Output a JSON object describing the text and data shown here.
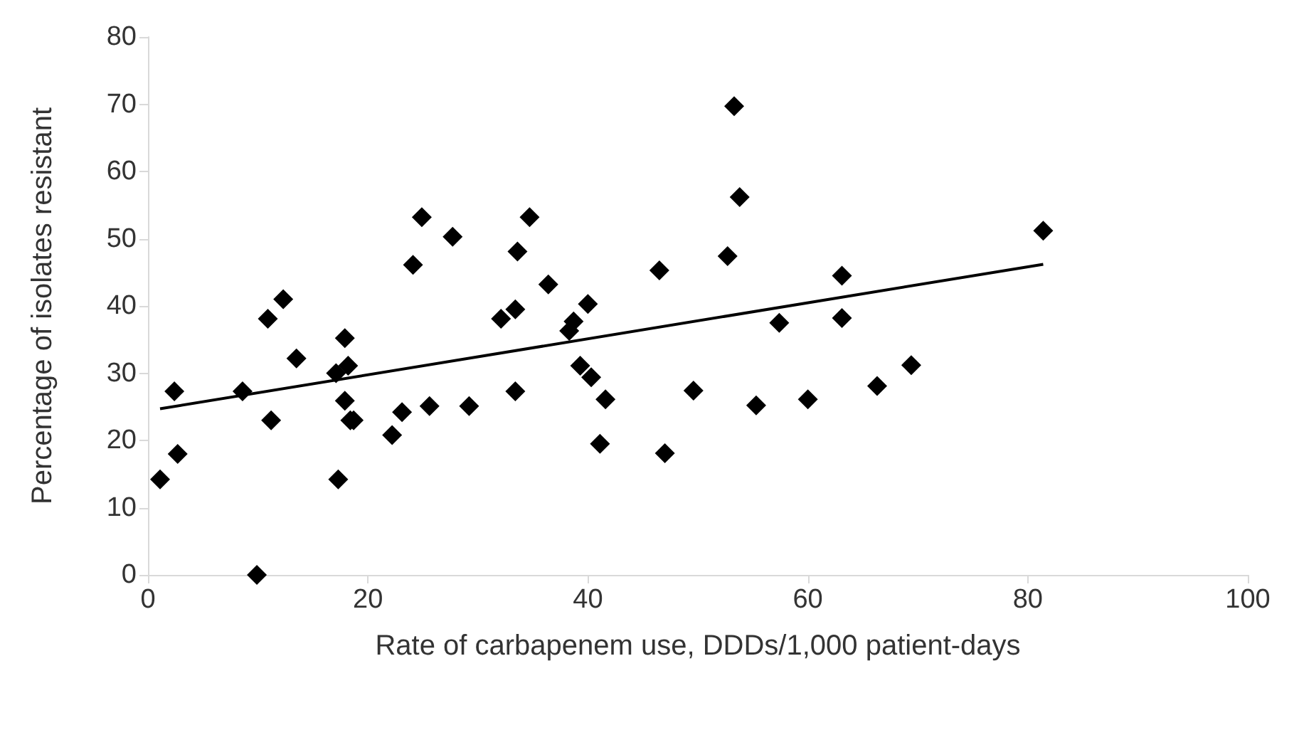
{
  "chart_data": {
    "type": "scatter",
    "xlabel": "Rate of carbapenem use, DDDs/1,000 patient-days",
    "ylabel": "Percentage of isolates resistant",
    "xlim": [
      0,
      100
    ],
    "xticks": [
      0,
      20,
      40,
      60,
      80,
      100
    ],
    "ylim": [
      0,
      80
    ],
    "yticks": [
      0,
      10,
      20,
      30,
      40,
      50,
      60,
      70,
      80
    ],
    "grid": false,
    "marker": "diamond",
    "series": [
      {
        "color": "#000000",
        "x": [
          1.1,
          2.4,
          2.7,
          8.6,
          9.9,
          10.9,
          11.2,
          12.3,
          13.5,
          17.1,
          17.3,
          17.9,
          17.9,
          18.2,
          18.4,
          18.7,
          22.2,
          23.1,
          24.1,
          24.9,
          25.6,
          27.7,
          29.2,
          32.1,
          33.4,
          33.6,
          33.4,
          34.7,
          36.4,
          38.3,
          38.7,
          40,
          39.3,
          40.3,
          41.6,
          41.1,
          46.5,
          47.0,
          49.6,
          52.7,
          53.3,
          53.8,
          55.3,
          57.4,
          60,
          63.1,
          63.1,
          66.3,
          69.4,
          81.4
        ],
        "values": [
          14.2,
          27.3,
          18,
          27.3,
          0,
          38.1,
          23,
          41,
          32.2,
          30,
          14.2,
          35.2,
          25.9,
          31.1,
          23,
          23,
          20.8,
          24.2,
          46.1,
          53.2,
          25.1,
          50.3,
          25.1,
          38.1,
          39.5,
          48.1,
          27.3,
          53.2,
          43.2,
          36.3,
          37.7,
          40.3,
          31.1,
          29.4,
          26.1,
          19.5,
          45.3,
          18.1,
          27.4,
          47.4,
          69.7,
          56.2,
          25.2,
          37.5,
          26.1,
          44.5,
          38.2,
          28.1,
          31.2,
          51.2
        ]
      },
      {
        "type": "line",
        "color": "#000000",
        "marker": "none",
        "x": [
          1.1,
          81.4
        ],
        "values": [
          24.7,
          46.2
        ]
      }
    ]
  }
}
